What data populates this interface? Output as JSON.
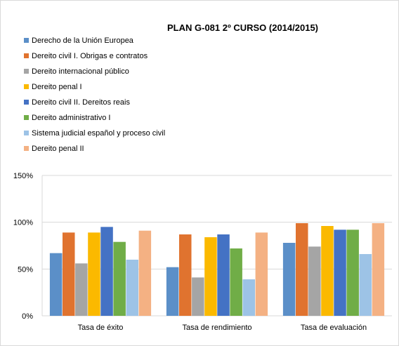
{
  "chart_data": {
    "type": "bar",
    "title": "PLAN G-081 2º CURSO (2014/2015)",
    "categories": [
      "Tasa de éxito",
      "Tasa de rendimiento",
      "Tasa de evaluación"
    ],
    "y_ticks": [
      "0%",
      "50%",
      "100%",
      "150%"
    ],
    "ylim": [
      0,
      150
    ],
    "grid": true,
    "legend_position": "top-left",
    "series": [
      {
        "name": "Derecho de la Unión Europea",
        "color": "#5b8fc8",
        "values": [
          67,
          52,
          78
        ]
      },
      {
        "name": "Dereito civil I. Obrigas e contratos",
        "color": "#e0732f",
        "values": [
          89,
          87,
          99
        ]
      },
      {
        "name": "Dereito internacional público",
        "color": "#a5a5a5",
        "values": [
          56,
          41,
          74
        ]
      },
      {
        "name": "Dereito penal I",
        "color": "#fbb900",
        "values": [
          89,
          84,
          96
        ]
      },
      {
        "name": "Dereito civil II. Dereitos reais",
        "color": "#4472c4",
        "values": [
          95,
          87,
          92
        ]
      },
      {
        "name": "Dereito administrativo I",
        "color": "#70ad47",
        "values": [
          79,
          72,
          92
        ]
      },
      {
        "name": "Sistema judicial español y proceso civil",
        "color": "#9dc3e6",
        "values": [
          60,
          39,
          66
        ]
      },
      {
        "name": "Dereito penal II",
        "color": "#f4b183",
        "values": [
          91,
          89,
          99
        ]
      }
    ]
  }
}
